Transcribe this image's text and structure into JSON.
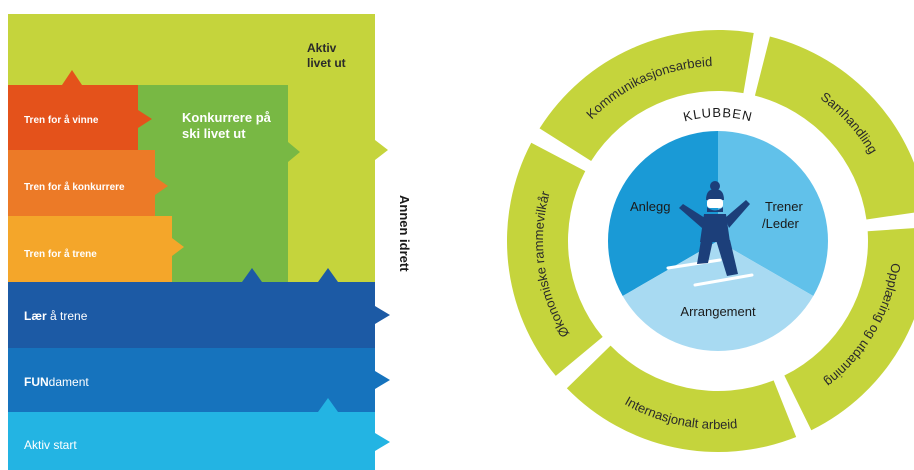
{
  "left_diagram": {
    "colors": {
      "aktiv_livet_ut": "#c5d43c",
      "konkurrere": "#78b844",
      "vinne": "#e4521b",
      "konkurrere_orange": "#ec7a27",
      "trene": "#f4a62a",
      "laer": "#1c5aa5",
      "fundament": "#1673bd",
      "aktiv_start": "#23b4e3"
    },
    "labels": {
      "aktiv_livet_ut_1": "Aktiv",
      "aktiv_livet_ut_2": "livet ut",
      "konkurrere_1": "Konkurrere på",
      "konkurrere_2": "ski livet ut",
      "vinne": "Tren for å vinne",
      "konkurrere_orange": "Tren for å konkurrere",
      "trene": "Tren for å trene",
      "laer_bold": "Lær",
      "laer_rest": " å trene",
      "fundament_bold": "FUN",
      "fundament_rest": "dament",
      "aktiv_start": "Aktiv start",
      "annen_idrett": "Annen idrett"
    }
  },
  "right_diagram": {
    "colors": {
      "outer_ring": "#c5d43c",
      "anlegg": "#1a9ad6",
      "trener": "#61c1ea",
      "arrangement": "#a8daf2",
      "skier": "#1c3f7a"
    },
    "outer_segments": [
      "Kommunikasjonsarbeid",
      "Samhandling",
      "Opplæring og utdanning",
      "Internasjonalt arbeid",
      "Økonomiske rammevilkår"
    ],
    "klubben": "KLUBBEN",
    "inner": {
      "anlegg": "Anlegg",
      "trener_1": "Trener",
      "trener_2": "/Leder",
      "arrangement": "Arrangement"
    }
  }
}
